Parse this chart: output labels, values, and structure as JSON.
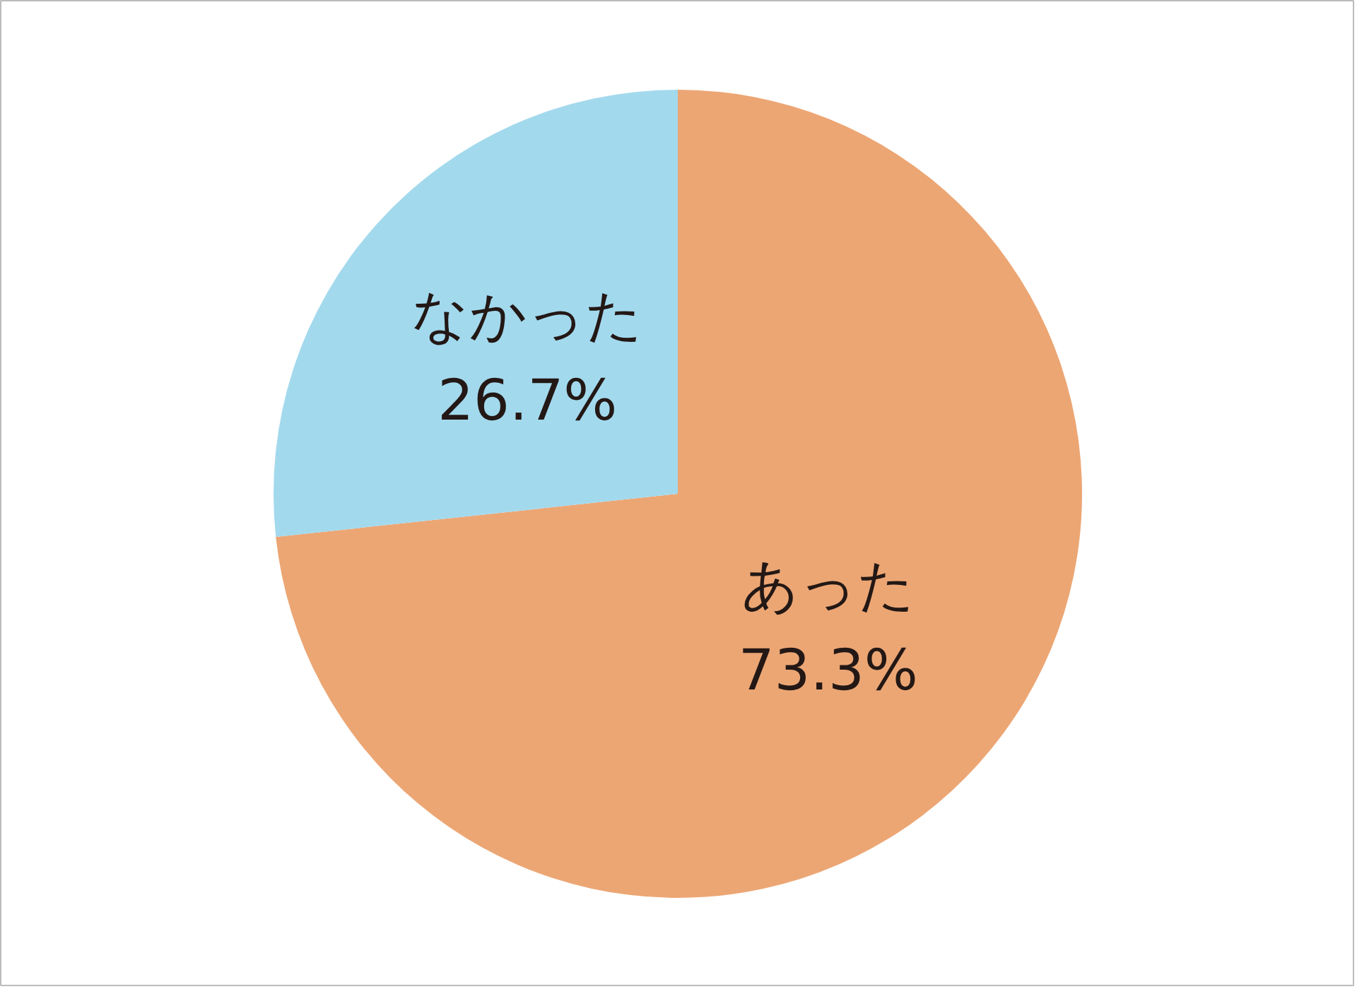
{
  "chart_data": {
    "type": "pie",
    "categories": [
      "あった",
      "なかった"
    ],
    "values": [
      73.3,
      26.7
    ],
    "colors": [
      "#eca674",
      "#a3d9ed"
    ],
    "value_labels": [
      "73.3%",
      "26.7%"
    ]
  }
}
